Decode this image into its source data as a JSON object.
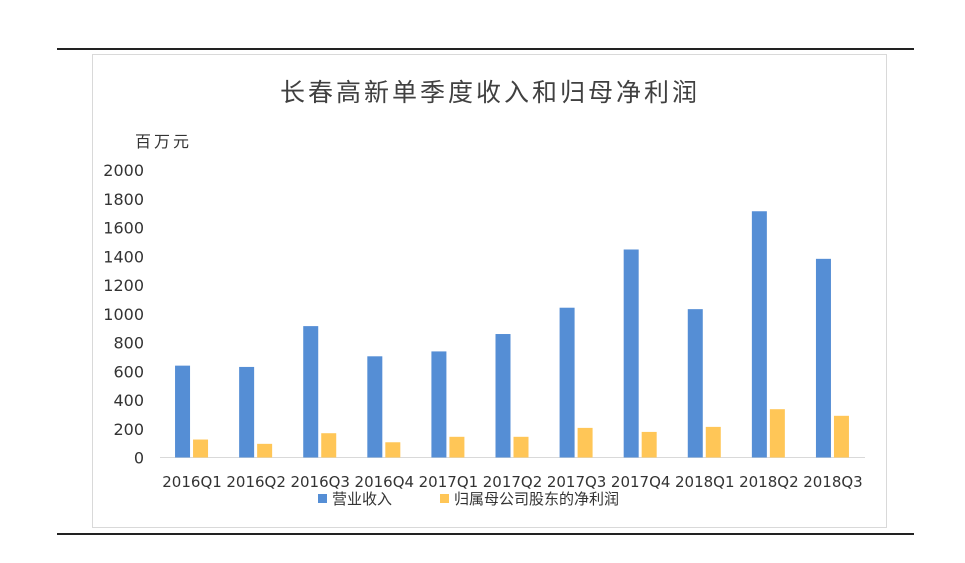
{
  "chart_data": {
    "type": "bar",
    "title": "长春高新单季度收入和归母净利润",
    "ylabel": "百万元",
    "ylim": [
      0,
      2000
    ],
    "yticks": [
      0,
      200,
      400,
      600,
      800,
      1000,
      1200,
      1400,
      1600,
      1800,
      2000
    ],
    "grid": false,
    "legend_position": "bottom",
    "categories": [
      "2016Q1",
      "2016Q2",
      "2016Q3",
      "2016Q4",
      "2017Q1",
      "2017Q2",
      "2017Q3",
      "2017Q4",
      "2018Q1",
      "2018Q2",
      "2018Q3"
    ],
    "series": [
      {
        "name": "营业收入",
        "color": "#558ed5",
        "values": [
          639,
          630,
          914,
          704,
          738,
          859,
          1042,
          1447,
          1032,
          1713,
          1382
        ]
      },
      {
        "name": "归属母公司股东的净利润",
        "color": "#ffc657",
        "values": [
          125,
          95,
          169,
          106,
          144,
          144,
          206,
          178,
          213,
          336,
          290
        ]
      }
    ]
  }
}
